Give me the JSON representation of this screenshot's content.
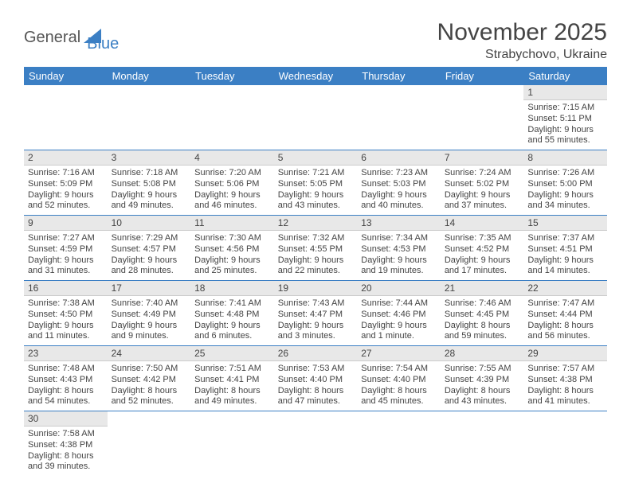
{
  "logo": {
    "text1": "General",
    "text2": "Blue"
  },
  "title": "November 2025",
  "location": "Strabychovo, Ukraine",
  "colors": {
    "header_bg": "#3b7fc4",
    "header_fg": "#ffffff",
    "daynum_bg": "#e8e8e8",
    "row_divider": "#3b7fc4",
    "text": "#444444",
    "logo_gray": "#555555",
    "logo_blue": "#3b7fc4"
  },
  "week_headers": [
    "Sunday",
    "Monday",
    "Tuesday",
    "Wednesday",
    "Thursday",
    "Friday",
    "Saturday"
  ],
  "weeks": [
    [
      null,
      null,
      null,
      null,
      null,
      null,
      {
        "n": "1",
        "sunrise": "Sunrise: 7:15 AM",
        "sunset": "Sunset: 5:11 PM",
        "daylight": "Daylight: 9 hours and 55 minutes."
      }
    ],
    [
      {
        "n": "2",
        "sunrise": "Sunrise: 7:16 AM",
        "sunset": "Sunset: 5:09 PM",
        "daylight": "Daylight: 9 hours and 52 minutes."
      },
      {
        "n": "3",
        "sunrise": "Sunrise: 7:18 AM",
        "sunset": "Sunset: 5:08 PM",
        "daylight": "Daylight: 9 hours and 49 minutes."
      },
      {
        "n": "4",
        "sunrise": "Sunrise: 7:20 AM",
        "sunset": "Sunset: 5:06 PM",
        "daylight": "Daylight: 9 hours and 46 minutes."
      },
      {
        "n": "5",
        "sunrise": "Sunrise: 7:21 AM",
        "sunset": "Sunset: 5:05 PM",
        "daylight": "Daylight: 9 hours and 43 minutes."
      },
      {
        "n": "6",
        "sunrise": "Sunrise: 7:23 AM",
        "sunset": "Sunset: 5:03 PM",
        "daylight": "Daylight: 9 hours and 40 minutes."
      },
      {
        "n": "7",
        "sunrise": "Sunrise: 7:24 AM",
        "sunset": "Sunset: 5:02 PM",
        "daylight": "Daylight: 9 hours and 37 minutes."
      },
      {
        "n": "8",
        "sunrise": "Sunrise: 7:26 AM",
        "sunset": "Sunset: 5:00 PM",
        "daylight": "Daylight: 9 hours and 34 minutes."
      }
    ],
    [
      {
        "n": "9",
        "sunrise": "Sunrise: 7:27 AM",
        "sunset": "Sunset: 4:59 PM",
        "daylight": "Daylight: 9 hours and 31 minutes."
      },
      {
        "n": "10",
        "sunrise": "Sunrise: 7:29 AM",
        "sunset": "Sunset: 4:57 PM",
        "daylight": "Daylight: 9 hours and 28 minutes."
      },
      {
        "n": "11",
        "sunrise": "Sunrise: 7:30 AM",
        "sunset": "Sunset: 4:56 PM",
        "daylight": "Daylight: 9 hours and 25 minutes."
      },
      {
        "n": "12",
        "sunrise": "Sunrise: 7:32 AM",
        "sunset": "Sunset: 4:55 PM",
        "daylight": "Daylight: 9 hours and 22 minutes."
      },
      {
        "n": "13",
        "sunrise": "Sunrise: 7:34 AM",
        "sunset": "Sunset: 4:53 PM",
        "daylight": "Daylight: 9 hours and 19 minutes."
      },
      {
        "n": "14",
        "sunrise": "Sunrise: 7:35 AM",
        "sunset": "Sunset: 4:52 PM",
        "daylight": "Daylight: 9 hours and 17 minutes."
      },
      {
        "n": "15",
        "sunrise": "Sunrise: 7:37 AM",
        "sunset": "Sunset: 4:51 PM",
        "daylight": "Daylight: 9 hours and 14 minutes."
      }
    ],
    [
      {
        "n": "16",
        "sunrise": "Sunrise: 7:38 AM",
        "sunset": "Sunset: 4:50 PM",
        "daylight": "Daylight: 9 hours and 11 minutes."
      },
      {
        "n": "17",
        "sunrise": "Sunrise: 7:40 AM",
        "sunset": "Sunset: 4:49 PM",
        "daylight": "Daylight: 9 hours and 9 minutes."
      },
      {
        "n": "18",
        "sunrise": "Sunrise: 7:41 AM",
        "sunset": "Sunset: 4:48 PM",
        "daylight": "Daylight: 9 hours and 6 minutes."
      },
      {
        "n": "19",
        "sunrise": "Sunrise: 7:43 AM",
        "sunset": "Sunset: 4:47 PM",
        "daylight": "Daylight: 9 hours and 3 minutes."
      },
      {
        "n": "20",
        "sunrise": "Sunrise: 7:44 AM",
        "sunset": "Sunset: 4:46 PM",
        "daylight": "Daylight: 9 hours and 1 minute."
      },
      {
        "n": "21",
        "sunrise": "Sunrise: 7:46 AM",
        "sunset": "Sunset: 4:45 PM",
        "daylight": "Daylight: 8 hours and 59 minutes."
      },
      {
        "n": "22",
        "sunrise": "Sunrise: 7:47 AM",
        "sunset": "Sunset: 4:44 PM",
        "daylight": "Daylight: 8 hours and 56 minutes."
      }
    ],
    [
      {
        "n": "23",
        "sunrise": "Sunrise: 7:48 AM",
        "sunset": "Sunset: 4:43 PM",
        "daylight": "Daylight: 8 hours and 54 minutes."
      },
      {
        "n": "24",
        "sunrise": "Sunrise: 7:50 AM",
        "sunset": "Sunset: 4:42 PM",
        "daylight": "Daylight: 8 hours and 52 minutes."
      },
      {
        "n": "25",
        "sunrise": "Sunrise: 7:51 AM",
        "sunset": "Sunset: 4:41 PM",
        "daylight": "Daylight: 8 hours and 49 minutes."
      },
      {
        "n": "26",
        "sunrise": "Sunrise: 7:53 AM",
        "sunset": "Sunset: 4:40 PM",
        "daylight": "Daylight: 8 hours and 47 minutes."
      },
      {
        "n": "27",
        "sunrise": "Sunrise: 7:54 AM",
        "sunset": "Sunset: 4:40 PM",
        "daylight": "Daylight: 8 hours and 45 minutes."
      },
      {
        "n": "28",
        "sunrise": "Sunrise: 7:55 AM",
        "sunset": "Sunset: 4:39 PM",
        "daylight": "Daylight: 8 hours and 43 minutes."
      },
      {
        "n": "29",
        "sunrise": "Sunrise: 7:57 AM",
        "sunset": "Sunset: 4:38 PM",
        "daylight": "Daylight: 8 hours and 41 minutes."
      }
    ],
    [
      {
        "n": "30",
        "sunrise": "Sunrise: 7:58 AM",
        "sunset": "Sunset: 4:38 PM",
        "daylight": "Daylight: 8 hours and 39 minutes."
      },
      null,
      null,
      null,
      null,
      null,
      null
    ]
  ]
}
